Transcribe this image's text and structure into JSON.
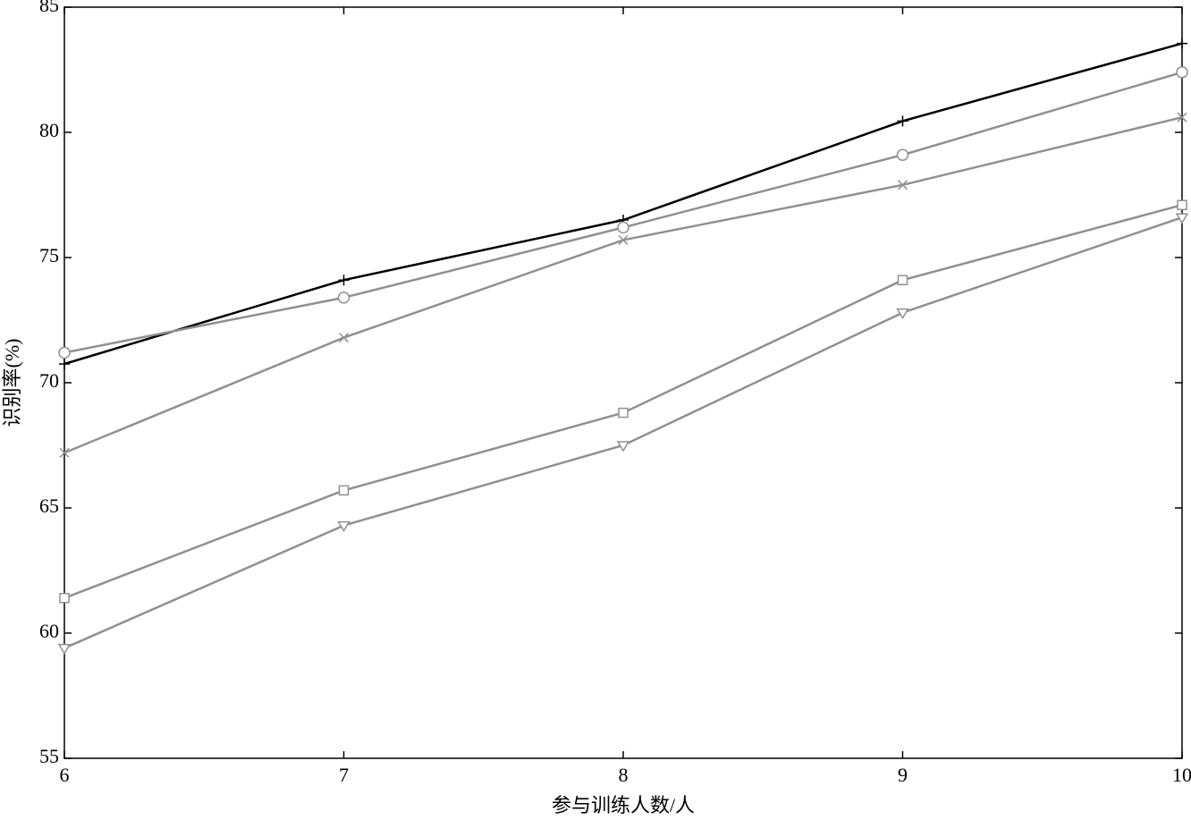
{
  "chart_data": {
    "type": "line",
    "x_label": "参与训练人数/人",
    "y_label": "识别率(%)",
    "x": [
      6,
      7,
      8,
      9,
      10
    ],
    "series": [
      {
        "color": "#000000",
        "marker": "plus",
        "values": [
          70.75,
          74.1,
          76.5,
          80.45,
          83.55
        ]
      },
      {
        "color": "#909090",
        "marker": "circle",
        "values": [
          71.2,
          73.4,
          76.2,
          79.1,
          82.4
        ]
      },
      {
        "color": "#909090",
        "marker": "x",
        "values": [
          67.2,
          71.8,
          75.7,
          77.9,
          80.6
        ]
      },
      {
        "color": "#909090",
        "marker": "square",
        "values": [
          61.4,
          65.7,
          68.8,
          74.1,
          77.1
        ]
      },
      {
        "color": "#909090",
        "marker": "triangle-down",
        "values": [
          59.4,
          64.3,
          67.5,
          72.8,
          76.6
        ]
      }
    ],
    "xlim": [
      6,
      10
    ],
    "xticks": [
      6,
      7,
      8,
      9,
      10
    ],
    "ylim": [
      55,
      85
    ],
    "yticks": [
      55,
      60,
      65,
      70,
      75,
      80,
      85
    ],
    "grid": false
  }
}
